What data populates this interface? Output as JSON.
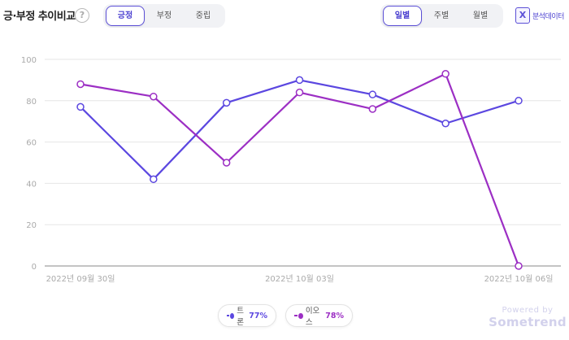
{
  "header": {
    "title": "긍·부정 추이비교",
    "help_label": "?",
    "sentiment_tabs": [
      {
        "label": "긍정",
        "active": true
      },
      {
        "label": "부정",
        "active": false
      },
      {
        "label": "중립",
        "active": false
      }
    ],
    "period_tabs": [
      {
        "label": "일별",
        "active": true
      },
      {
        "label": "주별",
        "active": false
      },
      {
        "label": "월별",
        "active": false
      }
    ],
    "export_icon_text": "X",
    "export_label": "분석데이터"
  },
  "chart_data": {
    "type": "line",
    "x": [
      "2022-09-30",
      "2022-10-01",
      "2022-10-02",
      "2022-10-03",
      "2022-10-04",
      "2022-10-05",
      "2022-10-06"
    ],
    "x_tick_labels": [
      "2022년 09월 30일",
      "2022년 10월 03일",
      "2022년 10월 06일"
    ],
    "y_ticks": [
      0,
      20,
      40,
      60,
      80,
      100
    ],
    "ylim": [
      0,
      100
    ],
    "grid": true,
    "series": [
      {
        "name": "트론",
        "color": "#5b47e0",
        "values": [
          77,
          42,
          79,
          90,
          83,
          69,
          80
        ]
      },
      {
        "name": "이오스",
        "color": "#9c2fc4",
        "values": [
          88,
          82,
          50,
          84,
          76,
          93,
          0
        ]
      }
    ]
  },
  "legend": [
    {
      "name": "트론",
      "percent": "77%",
      "color": "#5b47e0"
    },
    {
      "name": "이오스",
      "percent": "78%",
      "color": "#9c2fc4"
    }
  ],
  "branding": {
    "powered_by": "Powered by",
    "brand": "Sometrend"
  }
}
